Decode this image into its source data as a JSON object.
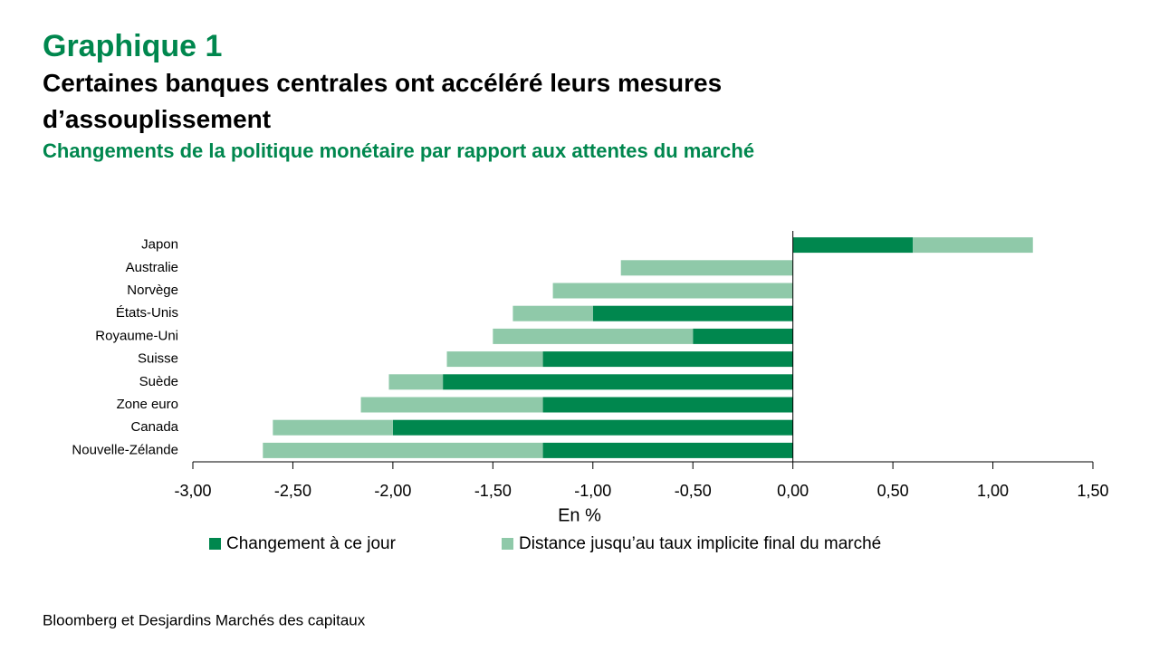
{
  "chart_data": {
    "type": "stacked-barh",
    "kicker": "Graphique 1",
    "title": "Certaines banques centrales ont accéléré leurs mesures d’assouplissement",
    "subtitle": "Changements de la politique monétaire par rapport aux attentes du marché",
    "xlabel": "En %",
    "source": "Bloomberg et Desjardins Marchés des capitaux",
    "categories": [
      "Japon",
      "Australie",
      "Norvège",
      "États-Unis",
      "Royaume-Uni",
      "Suisse",
      "Suède",
      "Zone euro",
      "Canada",
      "Nouvelle-Zélande"
    ],
    "series": [
      {
        "name": "Changement à ce jour",
        "color": "#00874e",
        "values": [
          0.6,
          0,
          0,
          -1.0,
          -0.5,
          -1.25,
          -1.75,
          -1.25,
          -2.0,
          -1.25
        ]
      },
      {
        "name": "Distance jusqu’au taux implicite final du marché",
        "color": "#8fc9a9",
        "values": [
          0.6,
          -0.86,
          -1.2,
          -0.4,
          -1.0,
          -0.48,
          -0.27,
          -0.91,
          -0.6,
          -1.4
        ]
      }
    ],
    "xlim": [
      -3,
      1.5
    ],
    "xticks": [
      {
        "value": -3,
        "label": "-3,00"
      },
      {
        "value": -2.5,
        "label": "-2,50"
      },
      {
        "value": -2,
        "label": "-2,00"
      },
      {
        "value": -1.5,
        "label": "-1,50"
      },
      {
        "value": -1,
        "label": "-1,00"
      },
      {
        "value": -0.5,
        "label": "-0,50"
      },
      {
        "value": 0,
        "label": "0,00"
      },
      {
        "value": 0.5,
        "label": "0,50"
      },
      {
        "value": 1,
        "label": "1,00"
      },
      {
        "value": 1.5,
        "label": "1,50"
      }
    ]
  }
}
